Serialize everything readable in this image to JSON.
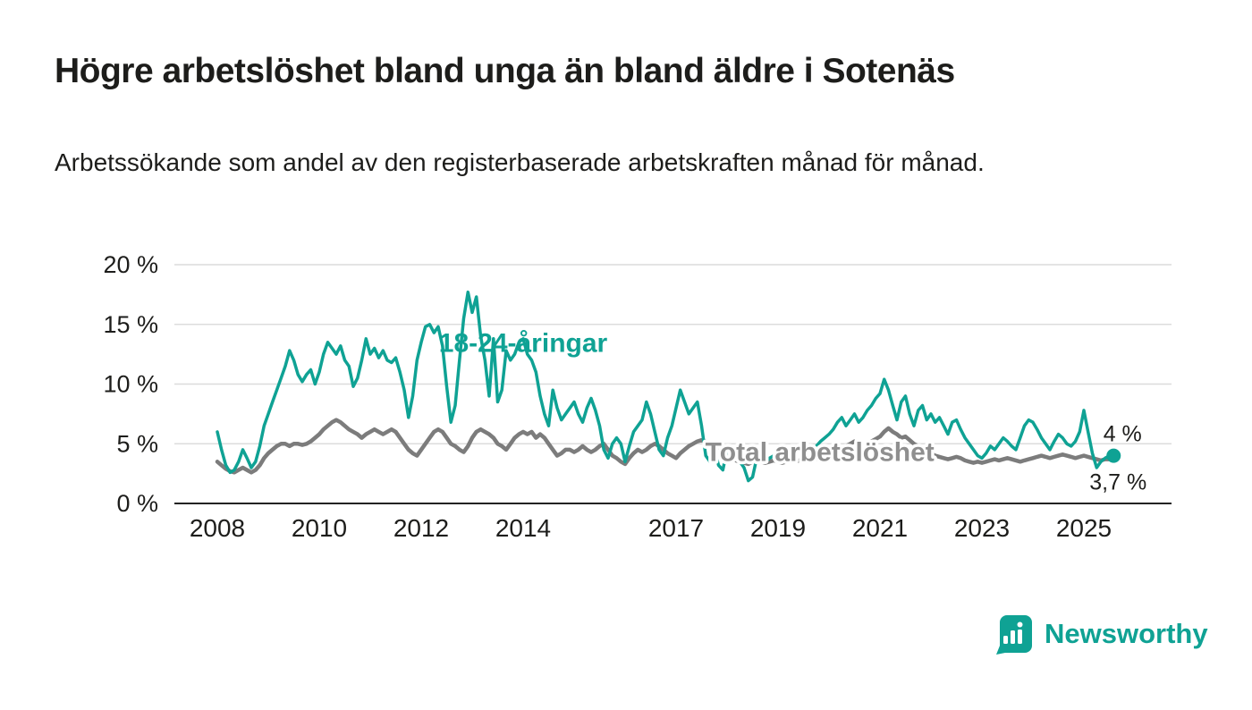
{
  "footer": {
    "brand": "Newsworthy"
  },
  "colors": {
    "accent": "#0FA294",
    "total_line": "#7C7C7C",
    "total_label": "#8F8F8F",
    "grid": "#DCDCDC",
    "axis_line": "#222222",
    "text": "#1D1D1B",
    "end_label": "#1D1D1B"
  },
  "chart_data": {
    "type": "line",
    "title": "Högre arbetslöshet bland unga än bland äldre i Sotenäs",
    "subtitle": "Arbetssökande som andel av den registerbaserade arbetskraften månad för månad.",
    "ylabel": "",
    "xlabel": "",
    "ylim": [
      0,
      20
    ],
    "xlim": [
      2007.2,
      2026.7
    ],
    "x_start": 2008.0,
    "x_step_months": 1,
    "grid": "horizontal",
    "legend_position": "inline-annotations",
    "y_ticks": [
      {
        "v": 0,
        "label": "0 %"
      },
      {
        "v": 5,
        "label": "5 %"
      },
      {
        "v": 10,
        "label": "10 %"
      },
      {
        "v": 15,
        "label": "15 %"
      },
      {
        "v": 20,
        "label": "20 %"
      }
    ],
    "x_ticks": [
      {
        "v": 2008,
        "label": "2008"
      },
      {
        "v": 2010,
        "label": "2010"
      },
      {
        "v": 2012,
        "label": "2012"
      },
      {
        "v": 2014,
        "label": "2014"
      },
      {
        "v": 2017,
        "label": "2017"
      },
      {
        "v": 2019,
        "label": "2019"
      },
      {
        "v": 2021,
        "label": "2021"
      },
      {
        "v": 2023,
        "label": "2023"
      },
      {
        "v": 2025,
        "label": "2025"
      }
    ],
    "series": [
      {
        "name": "18-24-åringar",
        "color": "#0FA294",
        "end_label": "4 %",
        "end_value": 4.0,
        "values": [
          6.0,
          4.5,
          3.2,
          2.6,
          2.8,
          3.5,
          4.5,
          3.8,
          3.0,
          3.5,
          4.8,
          6.5,
          7.5,
          8.5,
          9.5,
          10.5,
          11.5,
          12.8,
          12.0,
          10.8,
          10.2,
          10.8,
          11.2,
          10.0,
          11.0,
          12.5,
          13.5,
          13.0,
          12.5,
          13.2,
          12.0,
          11.5,
          9.8,
          10.5,
          12.0,
          13.8,
          12.5,
          13.0,
          12.2,
          12.8,
          12.0,
          11.8,
          12.2,
          11.0,
          9.5,
          7.2,
          9.0,
          12.0,
          13.5,
          14.8,
          15.0,
          14.3,
          14.8,
          13.2,
          9.8,
          6.8,
          8.2,
          12.0,
          15.5,
          17.7,
          16.0,
          17.3,
          14.0,
          12.0,
          9.0,
          13.8,
          8.5,
          9.5,
          12.8,
          12.0,
          12.5,
          13.5,
          13.8,
          12.5,
          12.0,
          11.0,
          9.0,
          7.5,
          6.5,
          9.5,
          8.0,
          7.0,
          7.5,
          8.0,
          8.5,
          7.5,
          6.8,
          8.0,
          8.8,
          7.8,
          6.5,
          4.5,
          3.8,
          5.0,
          5.5,
          5.0,
          3.5,
          4.8,
          6.0,
          6.5,
          7.0,
          8.5,
          7.5,
          6.0,
          4.5,
          4.0,
          5.5,
          6.5,
          8.0,
          9.5,
          8.5,
          7.5,
          8.0,
          8.5,
          6.5,
          4.0,
          3.5,
          4.5,
          3.2,
          2.8,
          4.5,
          4.8,
          4.2,
          3.5,
          3.0,
          1.9,
          2.2,
          3.8,
          4.0,
          3.5,
          3.8,
          4.0,
          4.5,
          4.2,
          4.0,
          3.8,
          4.2,
          4.5,
          4.8,
          4.5,
          4.2,
          4.8,
          5.2,
          5.5,
          5.8,
          6.2,
          6.8,
          7.2,
          6.5,
          7.0,
          7.5,
          6.8,
          7.2,
          7.8,
          8.2,
          8.8,
          9.2,
          10.4,
          9.5,
          8.2,
          7.0,
          8.5,
          9.0,
          7.5,
          6.5,
          7.8,
          8.2,
          7.0,
          7.5,
          6.8,
          7.2,
          6.5,
          5.8,
          6.8,
          7.0,
          6.2,
          5.5,
          5.0,
          4.5,
          4.0,
          3.8,
          4.2,
          4.8,
          4.5,
          5.0,
          5.5,
          5.2,
          4.8,
          4.5,
          5.5,
          6.5,
          7.0,
          6.8,
          6.2,
          5.5,
          5.0,
          4.5,
          5.2,
          5.8,
          5.5,
          5.0,
          4.8,
          5.2,
          6.0,
          7.8,
          6.0,
          4.2,
          3.0,
          3.5,
          3.8,
          4.0,
          4.0
        ]
      },
      {
        "name": "Total arbetslöshet",
        "color": "#7C7C7C",
        "end_label": "3,7 %",
        "end_value": 3.7,
        "values": [
          3.5,
          3.2,
          2.9,
          2.7,
          2.6,
          2.8,
          3.0,
          2.8,
          2.6,
          2.8,
          3.2,
          3.8,
          4.2,
          4.5,
          4.8,
          5.0,
          5.0,
          4.8,
          5.0,
          5.0,
          4.9,
          5.0,
          5.2,
          5.5,
          5.8,
          6.2,
          6.5,
          6.8,
          7.0,
          6.8,
          6.5,
          6.2,
          6.0,
          5.8,
          5.5,
          5.8,
          6.0,
          6.2,
          6.0,
          5.8,
          6.0,
          6.2,
          6.0,
          5.5,
          5.0,
          4.5,
          4.2,
          4.0,
          4.5,
          5.0,
          5.5,
          6.0,
          6.2,
          6.0,
          5.5,
          5.0,
          4.8,
          4.5,
          4.3,
          4.8,
          5.5,
          6.0,
          6.2,
          6.0,
          5.8,
          5.5,
          5.0,
          4.8,
          4.5,
          5.0,
          5.5,
          5.8,
          6.0,
          5.8,
          6.0,
          5.5,
          5.8,
          5.5,
          5.0,
          4.5,
          4.0,
          4.2,
          4.5,
          4.5,
          4.3,
          4.5,
          4.8,
          4.5,
          4.3,
          4.5,
          4.8,
          5.0,
          4.5,
          4.0,
          3.8,
          3.5,
          3.3,
          3.8,
          4.2,
          4.5,
          4.3,
          4.5,
          4.8,
          5.0,
          4.8,
          4.5,
          4.2,
          4.0,
          3.8,
          4.2,
          4.5,
          4.8,
          5.0,
          5.2,
          5.3,
          5.2,
          5.0,
          4.8,
          4.5,
          4.2,
          4.0,
          3.8,
          3.6,
          3.5,
          3.4,
          3.3,
          3.5,
          3.6,
          3.5,
          3.4,
          3.5,
          3.6,
          3.5,
          3.4,
          3.5,
          3.6,
          3.5,
          3.6,
          3.8,
          3.7,
          3.6,
          3.7,
          3.8,
          4.0,
          4.0,
          4.1,
          4.3,
          4.6,
          4.8,
          5.0,
          5.2,
          5.0,
          4.9,
          5.0,
          5.2,
          5.4,
          5.6,
          6.0,
          6.3,
          6.0,
          5.8,
          5.5,
          5.6,
          5.3,
          5.0,
          4.8,
          4.6,
          4.4,
          4.2,
          4.0,
          3.9,
          3.8,
          3.7,
          3.8,
          3.9,
          3.8,
          3.6,
          3.5,
          3.4,
          3.5,
          3.4,
          3.5,
          3.6,
          3.7,
          3.6,
          3.7,
          3.8,
          3.7,
          3.6,
          3.5,
          3.6,
          3.7,
          3.8,
          3.9,
          4.0,
          3.9,
          3.8,
          3.9,
          4.0,
          4.1,
          4.0,
          3.9,
          3.8,
          3.9,
          4.0,
          3.9,
          3.8,
          3.7,
          3.6,
          3.7,
          3.7,
          3.7
        ]
      }
    ],
    "annotations": [
      {
        "text": "18-24-åringar",
        "x": 2014.0,
        "y": 12.7,
        "series": 0
      },
      {
        "text": "Total arbetslöshet",
        "x": 2019.82,
        "y": 3.55,
        "series": 1
      }
    ]
  }
}
